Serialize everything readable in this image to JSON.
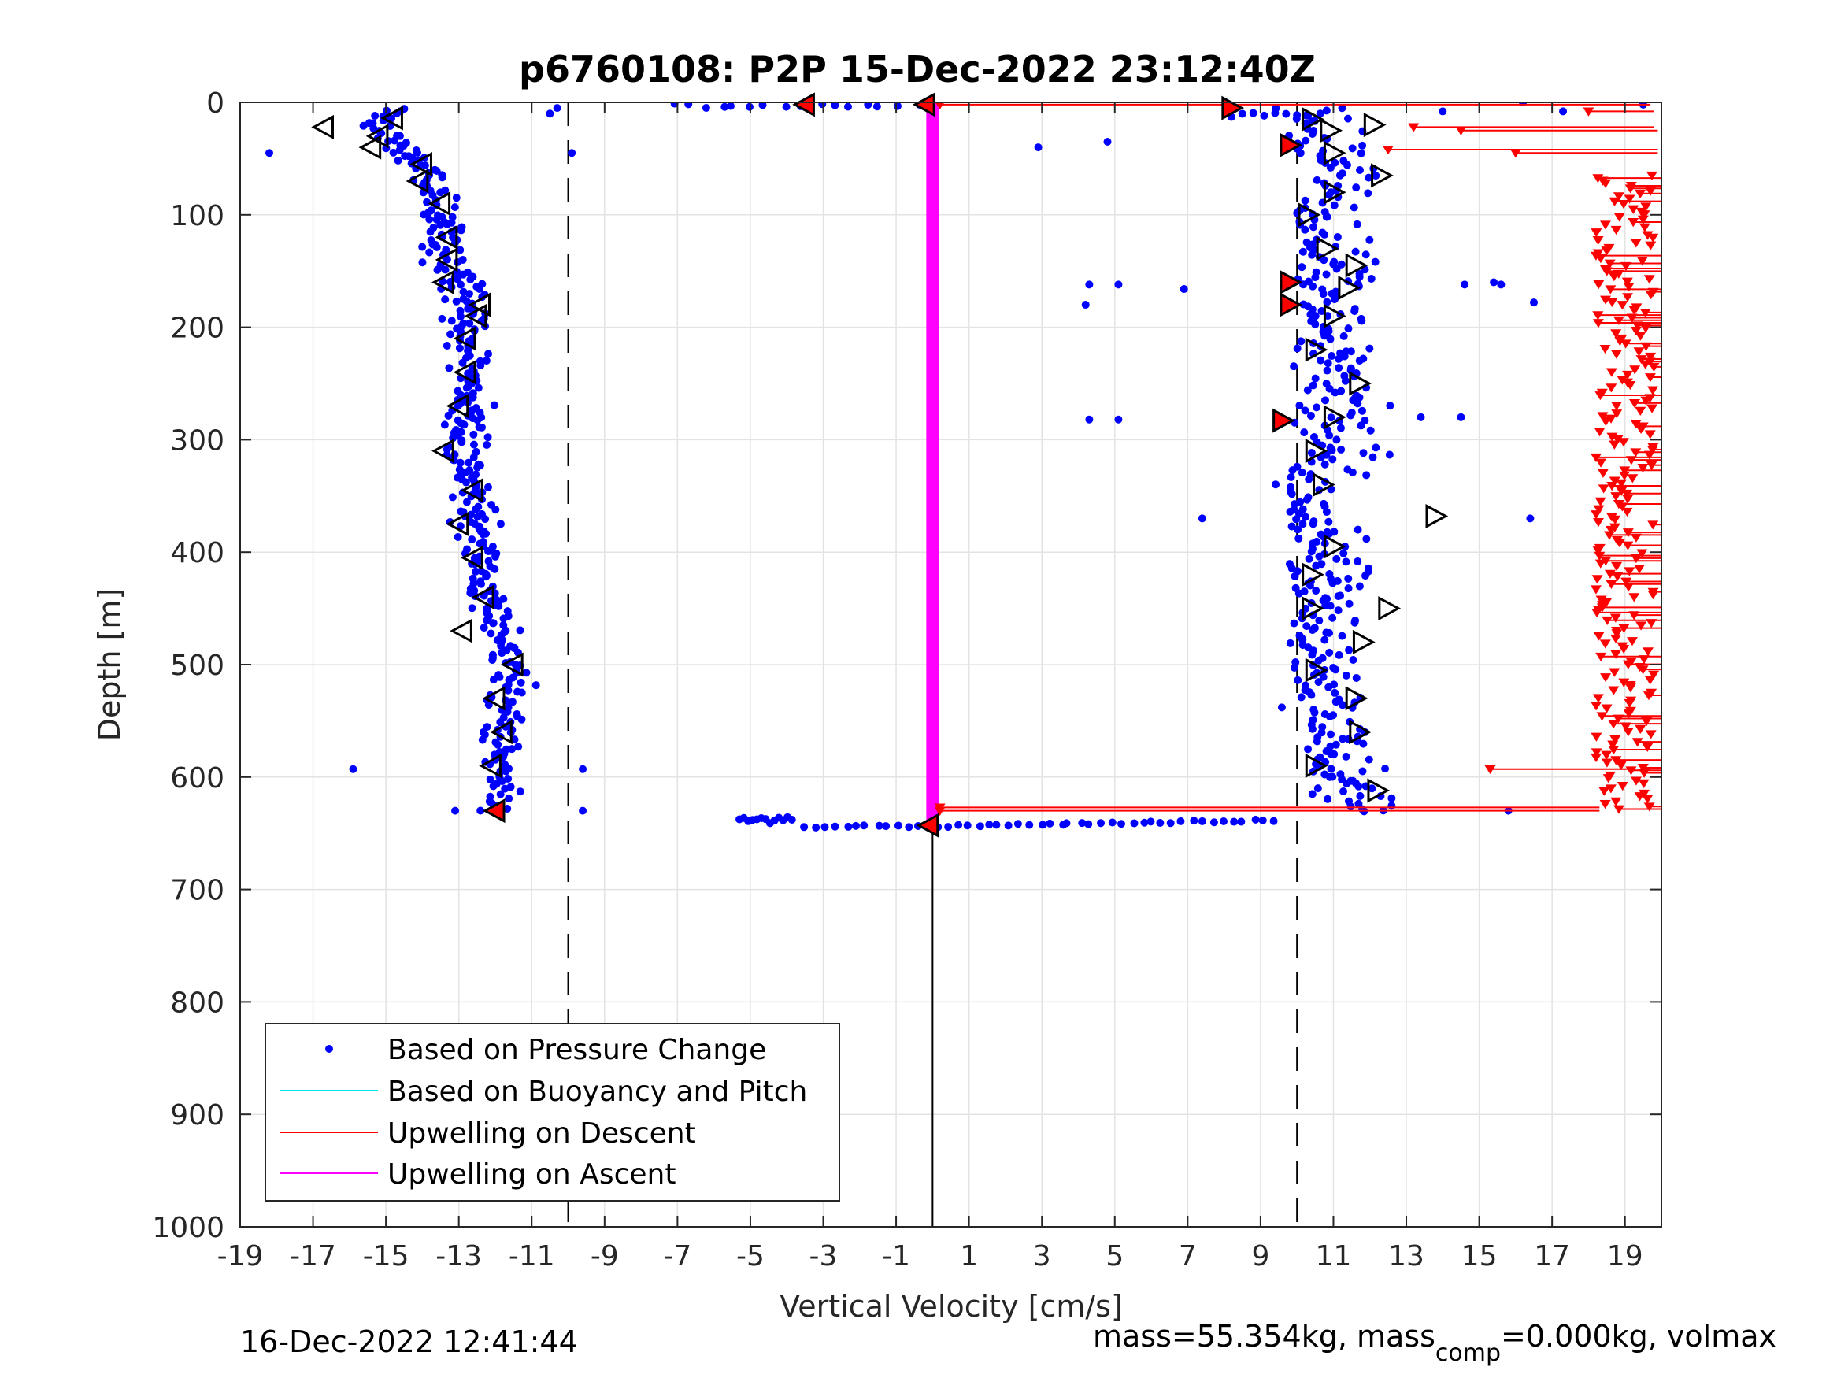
{
  "chart_data": {
    "type": "scatter",
    "title": "p6760108: P2P 15-Dec-2022 23:12:40Z",
    "xlabel": "Vertical Velocity [cm/s]",
    "ylabel": "Depth [m]",
    "xlim": [
      -19,
      20
    ],
    "ylim": [
      0,
      1000
    ],
    "y_reversed": true,
    "grid": true,
    "x_ticks": [
      "-19",
      "-17",
      "-15",
      "-13",
      "-11",
      "-9",
      "-7",
      "-5",
      "-3",
      "-1",
      "1",
      "3",
      "5",
      "7",
      "9",
      "11",
      "13",
      "15",
      "17",
      "19"
    ],
    "y_ticks": [
      "0",
      "100",
      "200",
      "300",
      "400",
      "500",
      "600",
      "700",
      "800",
      "900",
      "1000"
    ],
    "legend": {
      "placement": "bottom-left",
      "entries": [
        "Based on Pressure Change",
        "Based on Buoyancy and Pitch",
        "Upwelling on Descent",
        "Upwelling on Ascent"
      ]
    },
    "reference_lines": {
      "dashed_x": [
        -10,
        10
      ],
      "solid_x_below_bottom": 0,
      "bottom_depth": 643
    },
    "series": [
      {
        "name": "Based on Pressure Change",
        "color": "#0000ff",
        "descent_velocity_profile": [
          [
            0,
            -14.5
          ],
          [
            10,
            -15.0
          ],
          [
            20,
            -15.3
          ],
          [
            30,
            -15.0
          ],
          [
            40,
            -14.6
          ],
          [
            60,
            -14.0
          ],
          [
            80,
            -13.7
          ],
          [
            100,
            -13.4
          ],
          [
            150,
            -13.3
          ],
          [
            180,
            -12.6
          ],
          [
            200,
            -12.8
          ],
          [
            250,
            -12.7
          ],
          [
            300,
            -12.9
          ],
          [
            350,
            -12.6
          ],
          [
            400,
            -12.4
          ],
          [
            450,
            -12.1
          ],
          [
            500,
            -11.6
          ],
          [
            550,
            -11.7
          ],
          [
            600,
            -11.9
          ],
          [
            630,
            -11.9
          ]
        ],
        "ascent_velocity_profile": [
          [
            630,
            11.5
          ],
          [
            600,
            10.8
          ],
          [
            550,
            10.6
          ],
          [
            500,
            10.5
          ],
          [
            450,
            10.3
          ],
          [
            400,
            10.5
          ],
          [
            350,
            10.2
          ],
          [
            300,
            10.8
          ],
          [
            250,
            10.9
          ],
          [
            200,
            10.6
          ],
          [
            150,
            10.7
          ],
          [
            100,
            10.4
          ],
          [
            60,
            11.2
          ],
          [
            40,
            10.2
          ],
          [
            20,
            10.3
          ],
          [
            5,
            10.0
          ]
        ],
        "outliers": [
          [
            45,
            -18.2
          ],
          [
            10,
            -10.5
          ],
          [
            5,
            -10.3
          ],
          [
            45,
            -9.9
          ],
          [
            593,
            -15.9
          ],
          [
            630,
            -13.1
          ],
          [
            593,
            -9.6
          ],
          [
            630,
            -9.6
          ],
          [
            40,
            2.9
          ],
          [
            35,
            4.8
          ],
          [
            162,
            4.3
          ],
          [
            162,
            5.1
          ],
          [
            166,
            6.9
          ],
          [
            180,
            4.2
          ],
          [
            282,
            4.3
          ],
          [
            282,
            5.1
          ],
          [
            370,
            7.4
          ],
          [
            162,
            14.6
          ],
          [
            160,
            15.4
          ],
          [
            162,
            15.6
          ],
          [
            178,
            16.5
          ],
          [
            280,
            13.4
          ],
          [
            280,
            14.5
          ],
          [
            370,
            16.4
          ],
          [
            2,
            19.5
          ],
          [
            0,
            16.2
          ],
          [
            8,
            14.0
          ],
          [
            8,
            17.3
          ],
          [
            630,
            15.8
          ]
        ]
      },
      {
        "name": "Based on Buoyancy and Pitch",
        "color": "#00e5ee",
        "values": []
      },
      {
        "name": "Upwelling on Descent",
        "color": "#ff0000",
        "horizontal_lines": [
          {
            "depth": 2,
            "from": 0.2,
            "to": 19.7
          },
          {
            "depth": 8,
            "from": 18.0,
            "to": 19.8
          },
          {
            "depth": 22,
            "from": 13.2,
            "to": 19.8
          },
          {
            "depth": 25,
            "from": 14.5,
            "to": 19.9
          },
          {
            "depth": 42,
            "from": 12.5,
            "to": 19.9
          },
          {
            "depth": 45,
            "from": 16.0,
            "to": 19.9
          },
          {
            "depth": 593,
            "from": 15.3,
            "to": 19.2
          },
          {
            "depth": 627,
            "from": 0.2,
            "to": 18.3
          },
          {
            "depth": 630,
            "from": 0.2,
            "to": 18.3
          }
        ],
        "marker_band": {
          "depth_from": 65,
          "depth_to": 630,
          "velocity_from": 18.2,
          "velocity_to": 19.8
        }
      },
      {
        "name": "Upwelling on Ascent",
        "color": "#ff00ff",
        "value_cm_s": 0,
        "depth_range": [
          0,
          643
        ]
      }
    ],
    "markers": {
      "descent_triangles_open": [
        [
          14,
          -14.8
        ],
        [
          22,
          -16.7
        ],
        [
          30,
          -15.2
        ],
        [
          40,
          -15.4
        ],
        [
          55,
          -14.0
        ],
        [
          70,
          -14.1
        ],
        [
          90,
          -13.5
        ],
        [
          120,
          -13.3
        ],
        [
          140,
          -13.3
        ],
        [
          160,
          -13.4
        ],
        [
          180,
          -12.4
        ],
        [
          190,
          -12.5
        ],
        [
          210,
          -12.8
        ],
        [
          240,
          -12.8
        ],
        [
          270,
          -13.0
        ],
        [
          310,
          -13.4
        ],
        [
          345,
          -12.6
        ],
        [
          375,
          -13.0
        ],
        [
          405,
          -12.6
        ],
        [
          440,
          -12.3
        ],
        [
          470,
          -12.9
        ],
        [
          500,
          -11.5
        ],
        [
          530,
          -12.0
        ],
        [
          560,
          -11.8
        ],
        [
          590,
          -12.1
        ]
      ],
      "ascent_triangles_open": [
        [
          20,
          12.1
        ],
        [
          15,
          10.4
        ],
        [
          25,
          10.9
        ],
        [
          45,
          11.0
        ],
        [
          65,
          12.3
        ],
        [
          80,
          11.0
        ],
        [
          100,
          10.3
        ],
        [
          130,
          10.8
        ],
        [
          145,
          11.6
        ],
        [
          165,
          11.4
        ],
        [
          190,
          11.0
        ],
        [
          220,
          10.5
        ],
        [
          250,
          11.7
        ],
        [
          280,
          11.0
        ],
        [
          310,
          10.5
        ],
        [
          340,
          10.7
        ],
        [
          368,
          13.8
        ],
        [
          395,
          11.0
        ],
        [
          420,
          10.4
        ],
        [
          450,
          10.4
        ],
        [
          450,
          12.5
        ],
        [
          480,
          11.8
        ],
        [
          505,
          10.5
        ],
        [
          530,
          11.6
        ],
        [
          560,
          11.7
        ],
        [
          590,
          10.5
        ],
        [
          612,
          12.2
        ]
      ],
      "filled_red_triangles": [
        [
          2,
          -3.5
        ],
        [
          2,
          -0.2
        ],
        [
          5,
          8.2
        ],
        [
          38,
          9.8
        ],
        [
          160,
          9.8
        ],
        [
          180,
          9.8
        ],
        [
          283,
          9.6
        ],
        [
          630,
          -12.0
        ],
        [
          643,
          -0.1
        ]
      ]
    }
  },
  "footer": {
    "timestamp": "16-Dec-2022 12:41:44",
    "mass_text": "mass=55.354kg, mass",
    "mass_subscript": "comp",
    "mass_text_2": "=0.000kg, volmax"
  }
}
